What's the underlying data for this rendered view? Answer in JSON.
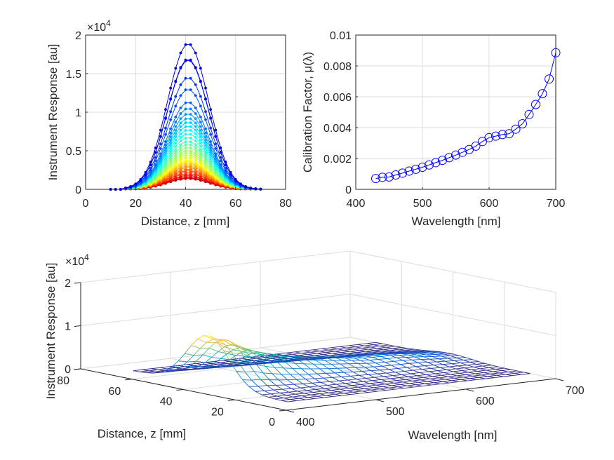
{
  "chart_data": [
    {
      "id": "response-vs-distance",
      "type": "line",
      "title": "",
      "xlabel": "Distance, z [mm]",
      "ylabel": "Instrument Response [au]",
      "y_exponent_label": "×10",
      "y_exponent": "4",
      "xlim": [
        0,
        80
      ],
      "ylim": [
        0,
        20000
      ],
      "xticks": [
        0,
        20,
        40,
        60,
        80
      ],
      "yticks": [
        0,
        5000,
        10000,
        15000,
        20000
      ],
      "ytick_labels": [
        "0",
        "0.5",
        "1",
        "1.5",
        "2"
      ],
      "grid": true,
      "colormap": "jet",
      "marker": "filled-dot",
      "x": [
        10,
        12,
        14,
        16,
        18,
        20,
        22,
        24,
        26,
        28,
        30,
        32,
        34,
        36,
        38,
        40,
        42,
        44,
        46,
        48,
        50,
        52,
        54,
        56,
        58,
        60,
        62,
        64,
        66,
        68,
        70
      ],
      "curve_shape": {
        "center": 41,
        "sigma": 8.2,
        "baseline_start": 16
      },
      "series_peaks": [
        18900,
        16900,
        16800,
        14500,
        13000,
        11300,
        10500,
        9800,
        9200,
        8700,
        8200,
        7700,
        7200,
        6700,
        6200,
        5800,
        5400,
        5000,
        4700,
        4400,
        4100,
        3800,
        3600,
        3400,
        3200,
        3000,
        2800,
        2600,
        2400,
        2200,
        2000,
        1800,
        1650,
        1500,
        1400
      ]
    },
    {
      "id": "calibration-factor",
      "type": "line",
      "title": "",
      "xlabel": "Wavelength [nm]",
      "ylabel": "Calibration Factor, μ(λ)",
      "xlim": [
        400,
        700
      ],
      "ylim": [
        0,
        0.01
      ],
      "xticks": [
        400,
        500,
        600,
        700
      ],
      "yticks": [
        0,
        0.002,
        0.004,
        0.006,
        0.008,
        0.01
      ],
      "ytick_labels": [
        "0",
        "0.002",
        "0.004",
        "0.006",
        "0.008",
        "0.01"
      ],
      "grid": true,
      "color": "#0000ff",
      "marker": "open-circle",
      "x": [
        430,
        440,
        450,
        460,
        470,
        480,
        490,
        500,
        510,
        520,
        530,
        540,
        550,
        560,
        570,
        580,
        590,
        600,
        610,
        620,
        630,
        640,
        650,
        660,
        670,
        680,
        690,
        700
      ],
      "y": [
        0.0007,
        0.00078,
        0.0008,
        0.00093,
        0.00105,
        0.00118,
        0.0013,
        0.00143,
        0.00158,
        0.00173,
        0.00188,
        0.00205,
        0.00222,
        0.0024,
        0.00258,
        0.0028,
        0.0031,
        0.00335,
        0.00345,
        0.00355,
        0.0036,
        0.0039,
        0.00425,
        0.00485,
        0.0055,
        0.0062,
        0.00715,
        0.00885
      ]
    },
    {
      "id": "response-surface",
      "type": "surface",
      "title": "",
      "xlabel": "Wavelength [nm]",
      "ylabel": "Distance, z [mm]",
      "zlabel": "Instrument Response [au]",
      "z_exponent_label": "×10",
      "z_exponent": "4",
      "xlim": [
        400,
        700
      ],
      "ylim": [
        0,
        80
      ],
      "zlim": [
        0,
        20000
      ],
      "xticks": [
        400,
        500,
        600,
        700
      ],
      "yticks": [
        0,
        20,
        40,
        60,
        80
      ],
      "zticks": [
        0,
        10000,
        20000
      ],
      "ztick_labels": [
        "0",
        "1",
        "2"
      ],
      "grid": true,
      "colormap": "parula",
      "style": "mesh",
      "wavelength_range": [
        430,
        700
      ],
      "distance_range": [
        10,
        70
      ],
      "peak": {
        "wavelength": 430,
        "distance": 41,
        "value": 18900
      }
    }
  ]
}
